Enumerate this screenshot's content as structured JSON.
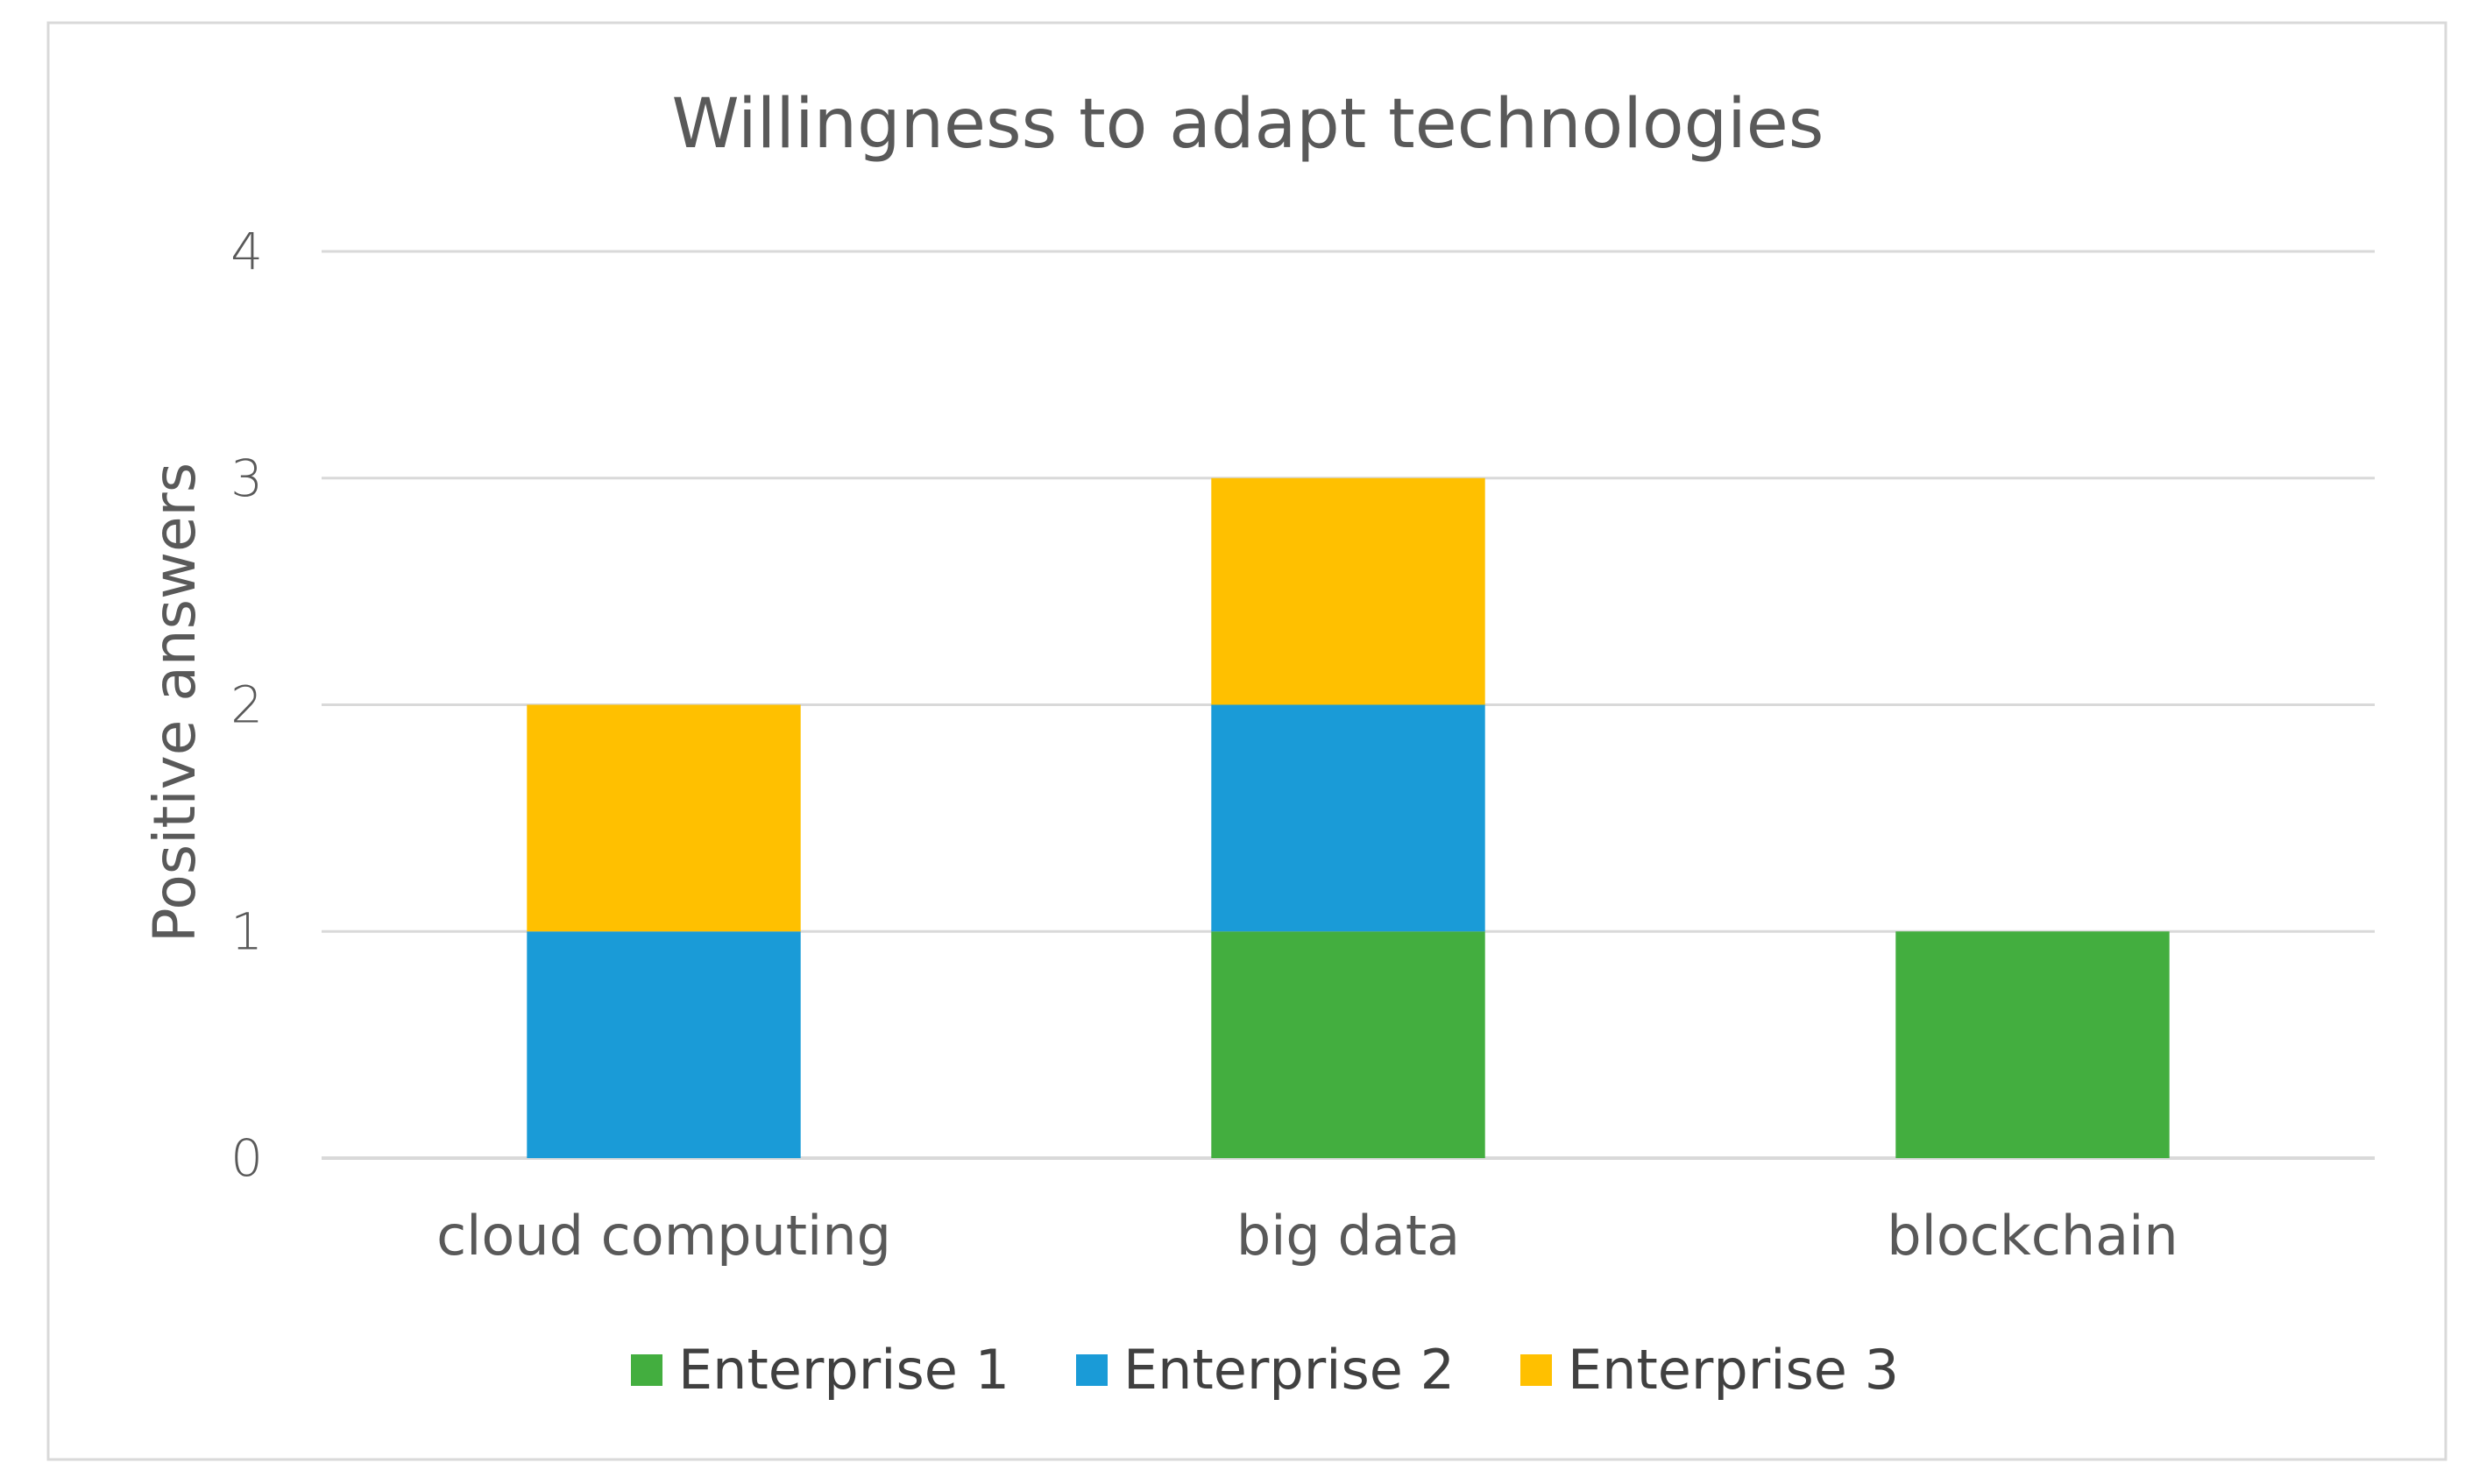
{
  "chart_data": {
    "type": "bar",
    "stacked": true,
    "title": "Willingness to adapt technologies",
    "xlabel": "",
    "ylabel": "Positive answers",
    "ylim": [
      0,
      4
    ],
    "yticks": [
      "0",
      "1",
      "2",
      "3",
      "4"
    ],
    "grid": true,
    "legend_position": "bottom",
    "categories": [
      "cloud computing",
      "big data",
      "blockchain"
    ],
    "series": [
      {
        "name": "Enterprise 1",
        "color": "#43AE3F",
        "values": [
          0,
          1,
          1
        ]
      },
      {
        "name": "Enterprise 2",
        "color": "#1A9BD7",
        "values": [
          1,
          1,
          0
        ]
      },
      {
        "name": "Enterprise 3",
        "color": "#FFC000",
        "values": [
          1,
          1,
          0
        ]
      }
    ]
  }
}
